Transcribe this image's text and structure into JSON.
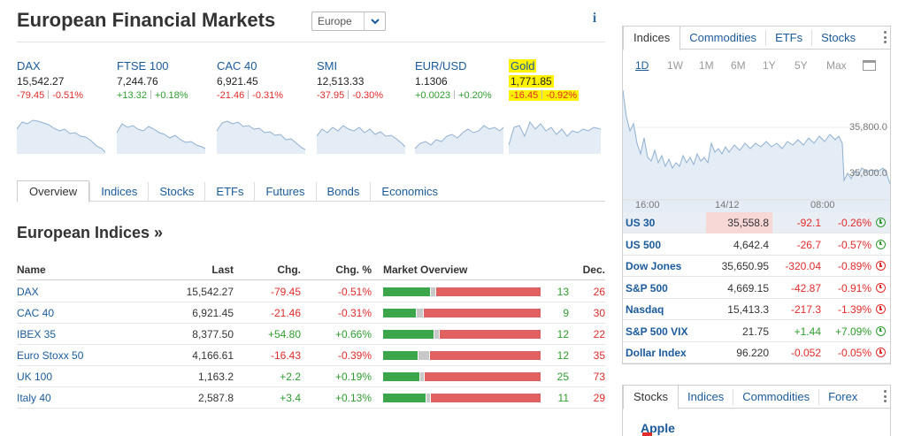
{
  "header": {
    "title": "European Financial Markets",
    "region_value": "Europe",
    "info_glyph": "i"
  },
  "cards": [
    {
      "name": "DAX",
      "price": "15,542.27",
      "chg": "-79.45",
      "pct": "-0.51%",
      "dir": "down",
      "highlight": false
    },
    {
      "name": "FTSE 100",
      "price": "7,244.76",
      "chg": "+13.32",
      "pct": "+0.18%",
      "dir": "up",
      "highlight": false
    },
    {
      "name": "CAC 40",
      "price": "6,921.45",
      "chg": "-21.46",
      "pct": "-0.31%",
      "dir": "down",
      "highlight": false
    },
    {
      "name": "SMI",
      "price": "12,513.33",
      "chg": "-37.95",
      "pct": "-0.30%",
      "dir": "down",
      "highlight": false
    },
    {
      "name": "EUR/USD",
      "price": "1.1306",
      "chg": "+0.0023",
      "pct": "+0.20%",
      "dir": "up",
      "highlight": false
    },
    {
      "name": "Gold",
      "price": "1,771.85",
      "chg": "-16.45",
      "pct": "-0.92%",
      "dir": "down",
      "highlight": true
    }
  ],
  "tabs": [
    "Overview",
    "Indices",
    "Stocks",
    "ETFs",
    "Futures",
    "Bonds",
    "Economics"
  ],
  "section": {
    "title": "European Indices »"
  },
  "table": {
    "headers": {
      "name": "Name",
      "last": "Last",
      "chg": "Chg.",
      "pct": "Chg. %",
      "mo": "Market Overview",
      "dec": "Dec."
    },
    "rows": [
      {
        "name": "DAX",
        "last": "15,542.27",
        "chg": "-79.45",
        "pct": "-0.51%",
        "adv": "13",
        "dec": "26",
        "dir": "down",
        "mo": [
          0.3,
          0.03,
          0.67
        ]
      },
      {
        "name": "CAC 40",
        "last": "6,921.45",
        "chg": "-21.46",
        "pct": "-0.31%",
        "adv": "9",
        "dec": "30",
        "dir": "down",
        "mo": [
          0.21,
          0.04,
          0.75
        ]
      },
      {
        "name": "IBEX 35",
        "last": "8,377.50",
        "chg": "+54.80",
        "pct": "+0.66%",
        "adv": "12",
        "dec": "22",
        "dir": "up",
        "mo": [
          0.32,
          0.03,
          0.65
        ]
      },
      {
        "name": "Euro Stoxx 50",
        "last": "4,166.61",
        "chg": "-16.43",
        "pct": "-0.39%",
        "adv": "12",
        "dec": "35",
        "dir": "down",
        "mo": [
          0.22,
          0.07,
          0.71
        ]
      },
      {
        "name": "UK 100",
        "last": "1,163.2",
        "chg": "+2.2",
        "pct": "+0.19%",
        "adv": "25",
        "dec": "73",
        "dir": "up",
        "mo": [
          0.23,
          0.02,
          0.75
        ]
      },
      {
        "name": "Italy 40",
        "last": "2,587.8",
        "chg": "+3.4",
        "pct": "+0.13%",
        "adv": "11",
        "dec": "29",
        "dir": "up",
        "mo": [
          0.27,
          0.01,
          0.72
        ]
      }
    ]
  },
  "panel": {
    "tabs": [
      "Indices",
      "Commodities",
      "ETFs",
      "Stocks"
    ],
    "ranges": [
      "1D",
      "1W",
      "1M",
      "6M",
      "1Y",
      "5Y",
      "Max"
    ],
    "chart_labels": {
      "y1": "35,800.0",
      "y2": "35,600.0",
      "x1": "16:00",
      "x2": "14/12",
      "x3": "08:00"
    },
    "rows": [
      {
        "name": "US 30",
        "last": "35,558.8",
        "chg": "-92.1",
        "pct": "-0.26%",
        "dir": "down",
        "clock": "green"
      },
      {
        "name": "US 500",
        "last": "4,642.4",
        "chg": "-26.7",
        "pct": "-0.57%",
        "dir": "down",
        "clock": "green"
      },
      {
        "name": "Dow Jones",
        "last": "35,650.95",
        "chg": "-320.04",
        "pct": "-0.89%",
        "dir": "down",
        "clock": "red"
      },
      {
        "name": "S&P 500",
        "last": "4,669.15",
        "chg": "-42.87",
        "pct": "-0.91%",
        "dir": "down",
        "clock": "red"
      },
      {
        "name": "Nasdaq",
        "last": "15,413.3",
        "chg": "-217.3",
        "pct": "-1.39%",
        "dir": "down",
        "clock": "red"
      },
      {
        "name": "S&P 500 VIX",
        "last": "21.75",
        "chg": "+1.44",
        "pct": "+7.09%",
        "dir": "up",
        "clock": "green"
      },
      {
        "name": "Dollar Index",
        "last": "96.220",
        "chg": "-0.052",
        "pct": "-0.05%",
        "dir": "down",
        "clock": "red"
      }
    ]
  },
  "panel2": {
    "tabs": [
      "Stocks",
      "Indices",
      "Commodities",
      "Forex"
    ],
    "first_item": "Apple"
  },
  "colors": {
    "up": "#2e9d2e",
    "down": "#e32a2a",
    "link": "#1a5a9c",
    "highlight": "#fff200"
  }
}
